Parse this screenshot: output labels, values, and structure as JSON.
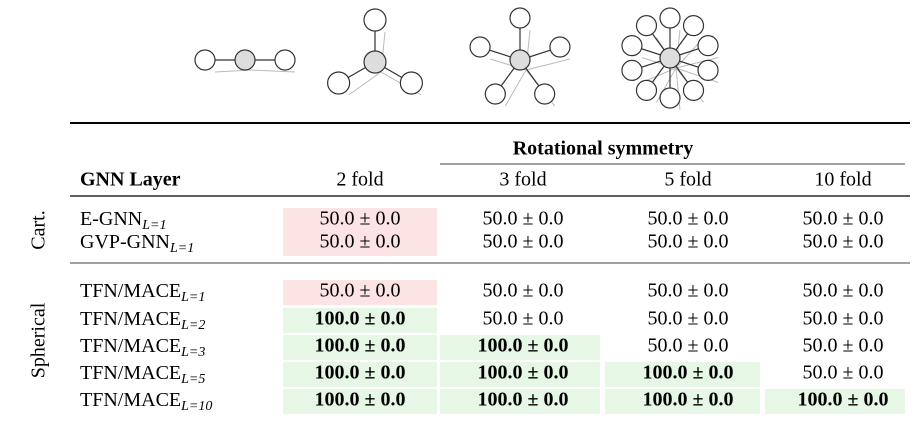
{
  "table": {
    "group_header": "Rotational symmetry",
    "columns": [
      "GNN Layer",
      "2 fold",
      "3 fold",
      "5 fold",
      "10 fold"
    ],
    "groups": [
      {
        "label": "Cart.",
        "rows": [
          {
            "name": "E-GNN",
            "sub": "L=1",
            "cells": [
              {
                "text": "50.0 ± 0.0",
                "fill": "#fde4e4"
              },
              {
                "text": "50.0 ± 0.0"
              },
              {
                "text": "50.0 ± 0.0"
              },
              {
                "text": "50.0 ± 0.0"
              }
            ]
          },
          {
            "name": "GVP-GNN",
            "sub": "L=1",
            "cells": [
              {
                "text": "50.0 ± 0.0",
                "fill": "#fde4e4"
              },
              {
                "text": "50.0 ± 0.0"
              },
              {
                "text": "50.0 ± 0.0"
              },
              {
                "text": "50.0 ± 0.0"
              }
            ]
          }
        ]
      },
      {
        "label": "Spherical",
        "rows": [
          {
            "name": "TFN/MACE",
            "sub": "L=1",
            "cells": [
              {
                "text": "50.0 ± 0.0",
                "fill": "#fde4e4"
              },
              {
                "text": "50.0 ± 0.0"
              },
              {
                "text": "50.0 ± 0.0"
              },
              {
                "text": "50.0 ± 0.0"
              }
            ]
          },
          {
            "name": "TFN/MACE",
            "sub": "L=2",
            "cells": [
              {
                "text": "100.0 ± 0.0",
                "fill": "#e6f7e6",
                "bold": true
              },
              {
                "text": "50.0 ± 0.0"
              },
              {
                "text": "50.0 ± 0.0"
              },
              {
                "text": "50.0 ± 0.0"
              }
            ]
          },
          {
            "name": "TFN/MACE",
            "sub": "L=3",
            "cells": [
              {
                "text": "100.0 ± 0.0",
                "fill": "#e6f7e6",
                "bold": true
              },
              {
                "text": "100.0 ± 0.0",
                "fill": "#e6f7e6",
                "bold": true
              },
              {
                "text": "50.0 ± 0.0"
              },
              {
                "text": "50.0 ± 0.0"
              }
            ]
          },
          {
            "name": "TFN/MACE",
            "sub": "L=5",
            "cells": [
              {
                "text": "100.0 ± 0.0",
                "fill": "#e6f7e6",
                "bold": true
              },
              {
                "text": "100.0 ± 0.0",
                "fill": "#e6f7e6",
                "bold": true
              },
              {
                "text": "100.0 ± 0.0",
                "fill": "#e6f7e6",
                "bold": true
              },
              {
                "text": "50.0 ± 0.0"
              }
            ]
          },
          {
            "name": "TFN/MACE",
            "sub": "L=10",
            "cells": [
              {
                "text": "100.0 ± 0.0",
                "fill": "#e6f7e6",
                "bold": true
              },
              {
                "text": "100.0 ± 0.0",
                "fill": "#e6f7e6",
                "bold": true
              },
              {
                "text": "100.0 ± 0.0",
                "fill": "#e6f7e6",
                "bold": true
              },
              {
                "text": "100.0 ± 0.0",
                "fill": "#e6f7e6",
                "bold": true
              }
            ]
          }
        ]
      }
    ]
  }
}
